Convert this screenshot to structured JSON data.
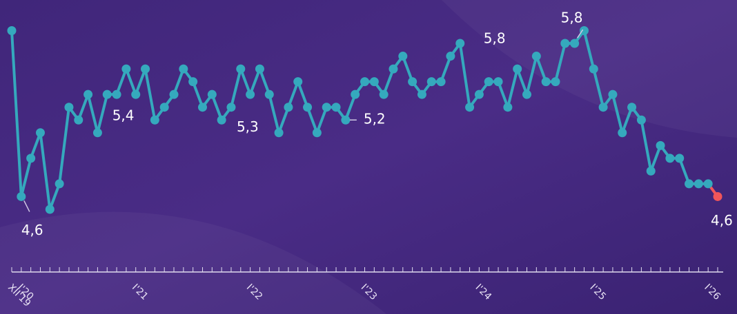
{
  "chart_data": {
    "type": "line",
    "categories": [
      "XII'19",
      "I'20",
      null,
      null,
      null,
      null,
      null,
      null,
      null,
      null,
      null,
      null,
      null,
      "I'21",
      null,
      null,
      null,
      null,
      null,
      null,
      null,
      null,
      null,
      null,
      null,
      "I'22",
      null,
      null,
      null,
      null,
      null,
      null,
      null,
      null,
      null,
      null,
      null,
      "I'23",
      null,
      null,
      null,
      null,
      null,
      null,
      null,
      null,
      null,
      null,
      null,
      "I'24",
      null,
      null,
      null,
      null,
      null,
      null,
      null,
      null,
      null,
      null,
      null,
      "I'25",
      null,
      null,
      null,
      null,
      null,
      null,
      null,
      null,
      null,
      null,
      null,
      "I'26",
      null
    ],
    "series": [
      {
        "color": "#35a9bd",
        "highlight_color": "#f0555a",
        "values": [
          5.9,
          4.6,
          4.9,
          5.1,
          4.5,
          4.7,
          5.3,
          5.2,
          5.4,
          5.1,
          5.4,
          5.4,
          5.6,
          5.4,
          5.6,
          5.2,
          5.3,
          5.4,
          5.6,
          5.5,
          5.3,
          5.4,
          5.2,
          5.3,
          5.6,
          5.4,
          5.6,
          5.4,
          5.1,
          5.3,
          5.5,
          5.3,
          5.1,
          5.3,
          5.3,
          5.2,
          5.4,
          5.5,
          5.5,
          5.4,
          5.6,
          5.7,
          5.5,
          5.4,
          5.5,
          5.5,
          5.7,
          5.8,
          5.3,
          5.4,
          5.5,
          5.5,
          5.3,
          5.6,
          5.4,
          5.7,
          5.5,
          5.5,
          5.8,
          5.8,
          5.9,
          5.6,
          5.3,
          5.4,
          5.1,
          5.3,
          5.2,
          4.8,
          5.0,
          4.9,
          4.9,
          4.7,
          4.7,
          4.7,
          4.6
        ],
        "value_labels": [
          null,
          "4,6",
          null,
          null,
          null,
          null,
          null,
          null,
          null,
          null,
          null,
          null,
          null,
          "5,4",
          null,
          null,
          null,
          null,
          null,
          null,
          null,
          null,
          null,
          "5,3",
          null,
          null,
          null,
          null,
          null,
          null,
          null,
          null,
          null,
          null,
          null,
          "5,2",
          null,
          null,
          null,
          null,
          null,
          null,
          null,
          null,
          null,
          null,
          null,
          "5,8",
          null,
          null,
          null,
          null,
          null,
          null,
          null,
          null,
          null,
          null,
          null,
          "5,8",
          null,
          null,
          null,
          null,
          null,
          null,
          null,
          null,
          null,
          null,
          null,
          null,
          null,
          null,
          "4,6"
        ]
      }
    ],
    "ylim": [
      3.68,
      6.14
    ]
  }
}
